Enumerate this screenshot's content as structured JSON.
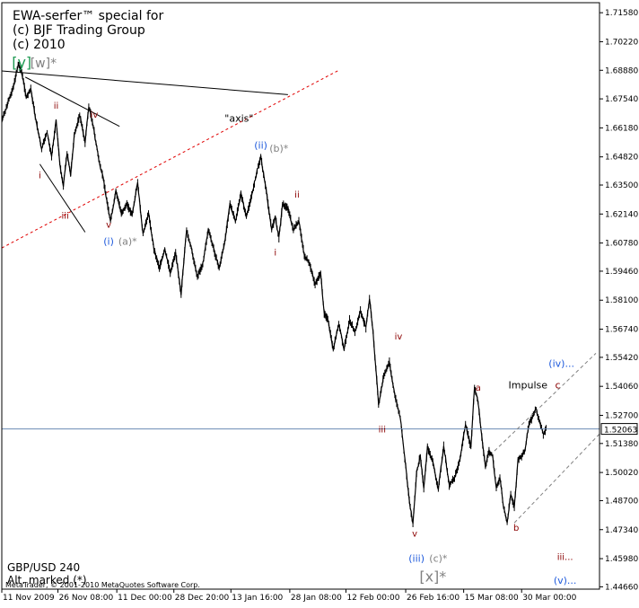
{
  "header": {
    "title_lines": [
      "EWA-serfer™ special for",
      "(c) BJF Trading Group",
      "(c) 2010"
    ]
  },
  "footer": {
    "symbol": "GBP/USD 240",
    "note": "Alt. marked (*)",
    "copyright": "MetaTrader, © 2001-2010 MetaQuotes Software Corp."
  },
  "colors": {
    "background": "#ffffff",
    "price": "#000000",
    "grid": "#000000",
    "axis_text": "#000000",
    "wave_red": "#8b0000",
    "wave_blue": "#1e5adc",
    "wave_gray": "#808080",
    "wave_green": "#1e9a52",
    "red_dashed": "#e00000",
    "gray_dashed": "#808080",
    "hline": "#6c8cb4"
  },
  "chart_data": {
    "type": "line",
    "title": "EWA-serfer™ special for (c) BJF Trading Group (c) 2010",
    "symbol": "GBP/USD",
    "timeframe": "240",
    "ylim": [
      1.4455,
      1.7205
    ],
    "current_price": "1.52063",
    "y_ticks": [
      "1.71580",
      "1.70220",
      "1.68880",
      "1.67540",
      "1.66180",
      "1.64820",
      "1.63500",
      "1.62140",
      "1.60780",
      "1.59460",
      "1.58100",
      "1.56740",
      "1.55420",
      "1.54060",
      "1.52700",
      "1.51380",
      "1.50020",
      "1.48700",
      "1.47340",
      "1.45980",
      "1.44660"
    ],
    "y_tick_values": [
      1.7158,
      1.7022,
      1.6888,
      1.6754,
      1.6618,
      1.6482,
      1.635,
      1.6214,
      1.6078,
      1.5946,
      1.581,
      1.5674,
      1.5542,
      1.5406,
      1.527,
      1.5138,
      1.5002,
      1.487,
      1.4734,
      1.4598,
      1.4466
    ],
    "x_ticks": [
      "11 Nov 2009",
      "26 Nov 08:00",
      "11 Dec 00:00",
      "28 Dec 20:00",
      "13 Jan 16:00",
      "28 Jan 08:00",
      "12 Feb 00:00",
      "26 Feb 16:00",
      "15 Mar 08:00",
      "30 Mar 00:00"
    ],
    "x_range_bars": [
      0,
      660
    ],
    "x_tick_bars": [
      0,
      62,
      127,
      190,
      253,
      318,
      380,
      446,
      510,
      574
    ],
    "series": [
      {
        "x": [
          0,
          8,
          14,
          18,
          22,
          27,
          32,
          38,
          44,
          50,
          55,
          60,
          64,
          68,
          72,
          76,
          80,
          86,
          92,
          96,
          100,
          104,
          108,
          112,
          116,
          120,
          126,
          132,
          138,
          144,
          150,
          156,
          162,
          168,
          174,
          180,
          186,
          192,
          198,
          204,
          210,
          216,
          222,
          228,
          234,
          240,
          246,
          252,
          258,
          264,
          270,
          276,
          282,
          286,
          290,
          294,
          298,
          302,
          306,
          310,
          316,
          322,
          328,
          334,
          340,
          346,
          352,
          356,
          360,
          366,
          372,
          378,
          384,
          390,
          396,
          402,
          406,
          410,
          416,
          422,
          428,
          434,
          440,
          446,
          450,
          454,
          458,
          462,
          466,
          470,
          476,
          482,
          488,
          494,
          500,
          506,
          512,
          518,
          522,
          526,
          530,
          534,
          538,
          542,
          546,
          550,
          554,
          558,
          562,
          566,
          570,
          574,
          578,
          582,
          586,
          590,
          594,
          598,
          602
        ],
        "y": [
          1.665,
          1.675,
          1.683,
          1.692,
          1.688,
          1.676,
          1.68,
          1.665,
          1.652,
          1.66,
          1.648,
          1.665,
          1.645,
          1.635,
          1.65,
          1.64,
          1.658,
          1.668,
          1.655,
          1.672,
          1.665,
          1.655,
          1.645,
          1.638,
          1.628,
          1.618,
          1.632,
          1.622,
          1.626,
          1.621,
          1.636,
          1.612,
          1.622,
          1.605,
          1.596,
          1.605,
          1.594,
          1.603,
          1.584,
          1.614,
          1.604,
          1.592,
          1.598,
          1.614,
          1.605,
          1.596,
          1.608,
          1.626,
          1.618,
          1.631,
          1.62,
          1.63,
          1.642,
          1.648,
          1.638,
          1.626,
          1.614,
          1.62,
          1.61,
          1.626,
          1.624,
          1.614,
          1.618,
          1.602,
          1.598,
          1.588,
          1.594,
          1.575,
          1.572,
          1.558,
          1.57,
          1.558,
          1.572,
          1.566,
          1.576,
          1.568,
          1.582,
          1.566,
          1.532,
          1.546,
          1.552,
          1.536,
          1.526,
          1.503,
          1.487,
          1.476,
          1.5,
          1.508,
          1.493,
          1.512,
          1.505,
          1.492,
          1.513,
          1.494,
          1.498,
          1.506,
          1.523,
          1.512,
          1.54,
          1.533,
          1.517,
          1.503,
          1.51,
          1.508,
          1.493,
          1.498,
          1.484,
          1.477,
          1.49,
          1.484,
          1.506,
          1.508,
          1.511,
          1.523,
          1.526,
          1.53,
          1.524,
          1.518,
          1.522
        ]
      }
    ],
    "annotations": [
      {
        "text": "[y]",
        "color": "green"
      },
      {
        "text": "[w]*",
        "color": "gray"
      },
      {
        "text": "ii",
        "color": "red"
      },
      {
        "text": "iv",
        "color": "red"
      },
      {
        "text": "i",
        "color": "red"
      },
      {
        "text": "iii",
        "color": "red"
      },
      {
        "text": "v",
        "color": "red"
      },
      {
        "text": "(i)",
        "color": "blue"
      },
      {
        "text": "(a)*",
        "color": "gray"
      },
      {
        "text": "\"axis\"",
        "color": "black"
      },
      {
        "text": "(ii)",
        "color": "blue"
      },
      {
        "text": "(b)*",
        "color": "gray"
      },
      {
        "text": "ii",
        "color": "red"
      },
      {
        "text": "i",
        "color": "red"
      },
      {
        "text": "iv",
        "color": "red"
      },
      {
        "text": "iii",
        "color": "red"
      },
      {
        "text": "v",
        "color": "red"
      },
      {
        "text": "(iii)",
        "color": "blue"
      },
      {
        "text": "(c)*",
        "color": "gray"
      },
      {
        "text": "[x]*",
        "color": "gray"
      },
      {
        "text": "a",
        "color": "red"
      },
      {
        "text": "b",
        "color": "red"
      },
      {
        "text": "Impulse",
        "color": "black"
      },
      {
        "text": "c",
        "color": "red"
      },
      {
        "text": "(iv)...",
        "color": "blue"
      },
      {
        "text": "iii...",
        "color": "red"
      },
      {
        "text": "(v)...",
        "color": "blue"
      }
    ]
  }
}
